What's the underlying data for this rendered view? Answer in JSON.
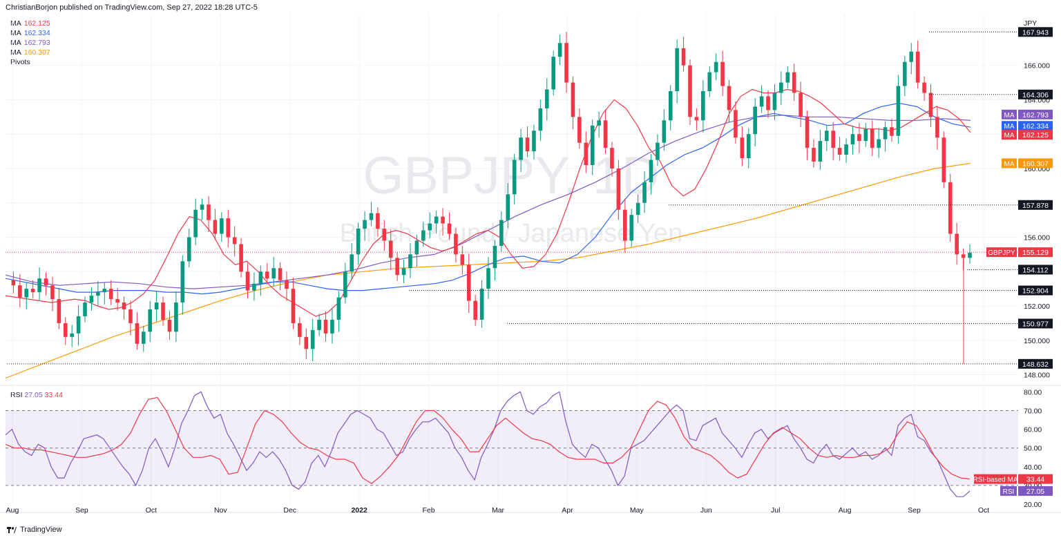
{
  "header": {
    "published": "ChristianBorjon published on TradingView.com, Sep 27, 2022 18:28 UTC-5"
  },
  "legend": {
    "items": [
      {
        "label": "MA",
        "value": "162.125",
        "color": "#f23645"
      },
      {
        "label": "MA",
        "value": "162.334",
        "color": "#2962ff"
      },
      {
        "label": "MA",
        "value": "162.793",
        "color": "#7e57c2"
      },
      {
        "label": "MA",
        "value": "160.307",
        "color": "#ff9800"
      },
      {
        "label": "Pivots",
        "value": "",
        "color": "#131722"
      }
    ]
  },
  "watermark": {
    "symbol": "GBPJPY, 1D",
    "name": "British Pound / Japanese Yen"
  },
  "currency": "JPY",
  "rsi_legend": {
    "label": "RSI",
    "v1": "27.05",
    "v2": "33.44",
    "c1": "#7e57c2",
    "c2": "#f23645"
  },
  "footer": {
    "brand": "TradingView"
  },
  "colors": {
    "up": "#089981",
    "down": "#f23645",
    "ma20": "#f23645",
    "ma50": "#2962ff",
    "ma100": "#7e57c2",
    "ma200": "#ff9800"
  },
  "chart_data": [
    {
      "type": "candlestick",
      "title": "GBPJPY, 1D",
      "yaxis_ticks": [
        148.0,
        150.0,
        152.0,
        154.0,
        156.0,
        158.0,
        160.0,
        162.0,
        164.0,
        166.0
      ],
      "x_ticks": [
        "Aug",
        "Sep",
        "Oct",
        "Nov",
        "Dec",
        "2022",
        "Feb",
        "Mar",
        "Apr",
        "May",
        "Jun",
        "Jul",
        "Aug",
        "Sep",
        "Oct"
      ],
      "ylim": [
        147.5,
        169.0
      ],
      "last_price": 155.129,
      "last_label": "GBPJPY",
      "price_labels": [
        {
          "value": 167.943,
          "kind": "pivot"
        },
        {
          "value": 164.306,
          "kind": "pivot"
        },
        {
          "value": 157.878,
          "kind": "pivot"
        },
        {
          "value": 154.112,
          "kind": "pivot"
        },
        {
          "value": 152.904,
          "kind": "pivot"
        },
        {
          "value": 150.977,
          "kind": "pivot"
        },
        {
          "value": 148.632,
          "kind": "pivot"
        }
      ],
      "ma_labels": [
        {
          "name": "MA",
          "value": 162.793,
          "color": "#7e57c2"
        },
        {
          "name": "MA",
          "value": 162.334,
          "color": "#2962ff"
        },
        {
          "name": "MA",
          "value": 162.125,
          "color": "#f23645"
        },
        {
          "name": "MA",
          "value": 160.307,
          "color": "#ff9800"
        }
      ],
      "close_path": [
        153.5,
        153.2,
        152.5,
        153.0,
        152.8,
        153.6,
        153.2,
        152.4,
        151.0,
        150.2,
        150.4,
        151.4,
        152.2,
        152.6,
        152.8,
        153.0,
        152.4,
        152.2,
        151.8,
        151.0,
        149.8,
        150.5,
        151.8,
        152.2,
        151.2,
        150.5,
        152.2,
        154.6,
        156.0,
        157.6,
        157.9,
        157.0,
        156.2,
        157.1,
        156.0,
        155.6,
        154.0,
        152.9,
        153.3,
        154.0,
        153.6,
        154.2,
        153.5,
        153.0,
        151.0,
        150.2,
        149.5,
        150.6,
        151.2,
        150.4,
        151.2,
        152.5,
        154.0,
        155.0,
        156.5,
        157.0,
        157.4,
        156.5,
        155.8,
        154.8,
        153.8,
        154.2,
        155.0,
        155.8,
        156.4,
        156.8,
        157.2,
        156.8,
        156.2,
        155.0,
        154.4,
        152.3,
        151.2,
        153.0,
        154.2,
        155.5,
        157.0,
        158.5,
        160.5,
        161.8,
        161.0,
        162.2,
        163.5,
        164.6,
        166.5,
        167.3,
        165.0,
        163.0,
        161.5,
        160.2,
        162.5,
        162.8,
        161.2,
        160.0,
        157.6,
        155.8,
        157.3,
        158.0,
        159.2,
        160.5,
        161.5,
        162.8,
        164.5,
        167.0,
        166.0,
        163.0,
        162.8,
        164.5,
        165.6,
        166.2,
        164.8,
        163.4,
        161.8,
        160.6,
        162.0,
        163.6,
        164.2,
        163.4,
        164.4,
        165.0,
        165.6,
        164.4,
        163.0,
        161.2,
        160.4,
        161.6,
        162.2,
        161.2,
        160.8,
        161.4,
        162.0,
        161.6,
        162.3,
        161.2,
        161.7,
        162.4,
        161.9,
        164.8,
        166.2,
        166.8,
        165.0,
        164.4,
        163.0,
        161.8,
        159.2,
        156.2,
        155.0,
        154.8,
        155.1
      ],
      "ma20": [
        152.6,
        152.5,
        152.4,
        152.3,
        152.2,
        152.3,
        152.4,
        152.3,
        152.0,
        151.8,
        151.9,
        152.2,
        152.7,
        153.5,
        154.8,
        156.2,
        157.2,
        157.0,
        156.2,
        155.0,
        154.4,
        154.6,
        154.0,
        153.2,
        152.6,
        152.2,
        151.8,
        151.4,
        151.6,
        152.2,
        153.4,
        154.6,
        155.6,
        156.2,
        156.4,
        156.2,
        155.8,
        155.4,
        155.2,
        155.4,
        155.8,
        156.2,
        156.4,
        156.0,
        155.0,
        154.2,
        154.3,
        155.0,
        156.2,
        158.0,
        160.0,
        161.8,
        163.2,
        164.0,
        163.5,
        162.5,
        161.2,
        160.4,
        159.0,
        158.4,
        158.8,
        160.0,
        161.5,
        163.2,
        164.2,
        164.6,
        164.4,
        164.4,
        164.6,
        164.5,
        164.2,
        163.8,
        163.2,
        162.6,
        162.4,
        162.3,
        162.3,
        162.2,
        162.4,
        162.8,
        163.2,
        163.6,
        163.4,
        162.9,
        162.1
      ],
      "ma50": [
        153.6,
        153.4,
        153.2,
        153.0,
        152.8,
        152.8,
        152.9,
        152.9,
        152.9,
        152.8,
        152.8,
        152.7,
        152.8,
        153.0,
        153.2,
        153.4,
        153.4,
        153.2,
        153.0,
        152.9,
        152.9,
        153.0,
        153.1,
        153.2,
        153.3,
        153.5,
        153.9,
        154.4,
        154.8,
        154.9,
        154.6,
        154.5,
        155.0,
        156.0,
        157.4,
        158.6,
        159.4,
        160.2,
        160.8,
        161.2,
        161.8,
        162.5,
        163.0,
        163.2,
        163.0,
        162.8,
        162.5,
        162.6,
        163.2,
        163.6,
        163.8,
        163.6,
        163.0,
        162.6,
        162.4
      ],
      "ma100": [
        153.8,
        153.4,
        153.2,
        153.3,
        153.4,
        153.3,
        153.1,
        153.0,
        153.1,
        153.2,
        153.4,
        153.6,
        153.8,
        154.1,
        154.5,
        154.8,
        155.0,
        155.6,
        156.4,
        157.2,
        157.9,
        158.5,
        159.2,
        160.0,
        160.9,
        161.6,
        162.2,
        162.7,
        163.0,
        163.1,
        163.0,
        163.0,
        162.9,
        162.8,
        162.8,
        162.9,
        162.8
      ],
      "ma200": [
        147.8,
        148.6,
        149.4,
        150.2,
        150.9,
        151.6,
        152.3,
        152.9,
        153.4,
        153.8,
        154.0,
        154.2,
        154.3,
        154.4,
        154.5,
        154.6,
        154.8,
        155.2,
        155.6,
        156.1,
        156.6,
        157.1,
        157.7,
        158.3,
        158.9,
        159.5,
        160.0,
        160.3
      ]
    },
    {
      "type": "line",
      "title": "RSI",
      "series": [
        {
          "name": "RSI",
          "value": 27.05
        },
        {
          "name": "RSI-based MA",
          "value": 33.44
        }
      ],
      "yaxis_ticks": [
        20.0,
        30.0,
        40.0,
        50.0,
        60.0,
        70.0,
        80.0
      ],
      "ylim": [
        20,
        82
      ],
      "rsi": [
        57,
        60,
        52,
        48,
        46,
        52,
        50,
        40,
        34,
        34,
        42,
        48,
        55,
        56,
        57,
        55,
        50,
        45,
        40,
        36,
        30,
        38,
        50,
        55,
        48,
        40,
        50,
        63,
        70,
        78,
        80,
        72,
        66,
        68,
        58,
        52,
        45,
        38,
        42,
        48,
        45,
        48,
        44,
        38,
        30,
        28,
        32,
        42,
        46,
        40,
        48,
        58,
        63,
        68,
        70,
        68,
        66,
        60,
        58,
        52,
        46,
        48,
        55,
        60,
        64,
        64,
        66,
        62,
        58,
        50,
        45,
        38,
        33,
        45,
        52,
        60,
        70,
        75,
        78,
        80,
        70,
        68,
        72,
        74,
        78,
        80,
        64,
        52,
        48,
        45,
        52,
        50,
        44,
        38,
        30,
        35,
        50,
        52,
        54,
        58,
        62,
        66,
        70,
        73,
        70,
        55,
        54,
        62,
        64,
        66,
        58,
        54,
        50,
        45,
        52,
        58,
        60,
        55,
        58,
        60,
        62,
        55,
        50,
        44,
        42,
        48,
        52,
        46,
        44,
        47,
        50,
        46,
        48,
        44,
        46,
        50,
        46,
        62,
        66,
        68,
        56,
        54,
        48,
        44,
        36,
        28,
        24,
        24,
        27
      ],
      "rsi_ma": [
        52,
        50,
        50,
        49,
        49,
        48,
        47,
        46,
        45,
        45,
        46,
        47,
        49,
        52,
        58,
        68,
        76,
        77,
        70,
        60,
        50,
        45,
        45,
        46,
        44,
        36,
        37,
        50,
        63,
        70,
        68,
        64,
        58,
        53,
        50,
        49,
        46,
        44,
        44,
        42,
        34,
        31,
        35,
        40,
        46,
        55,
        64,
        70,
        70,
        66,
        60,
        55,
        48,
        48,
        55,
        62,
        66,
        62,
        58,
        55,
        54,
        52,
        48,
        45,
        44,
        44,
        44,
        42,
        42,
        45,
        50,
        60,
        70,
        75,
        73,
        66,
        56,
        50,
        48,
        46,
        42,
        37,
        34,
        36,
        44,
        52,
        58,
        61,
        58,
        55,
        50,
        46,
        45,
        46,
        45,
        45,
        46,
        46,
        47,
        50,
        58,
        64,
        62,
        55,
        46,
        40,
        36,
        34,
        33.44
      ]
    }
  ]
}
